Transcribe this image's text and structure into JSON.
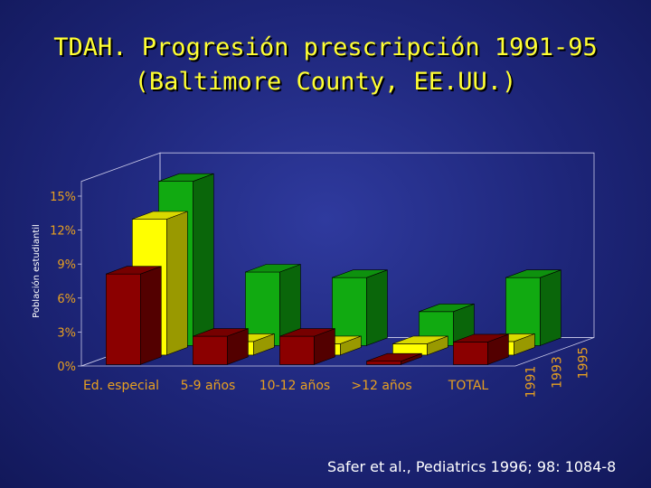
{
  "header": {
    "title_line1": "TDAH. Progresión prescripción 1991-95",
    "title_line2": "(Baltimore County, EE.UU.)"
  },
  "footer": {
    "source": "Safer et al., Pediatrics 1996; 98: 1084-8"
  },
  "chart_data": {
    "type": "bar",
    "style": "3d-clustered",
    "title": "TDAH. Progresión prescripción 1991-95 (Baltimore County, EE.UU.)",
    "ylabel": "Población estudiantil",
    "xlabel": "",
    "categories": [
      "Ed. especial",
      "5-9 años",
      "10-12 años",
      ">12 años",
      "TOTAL"
    ],
    "yticks": [
      "0%",
      "3%",
      "6%",
      "9%",
      "12%",
      "15%"
    ],
    "ylim": [
      0,
      15
    ],
    "grid": false,
    "series": [
      {
        "name": "1991",
        "values": [
          8,
          2.5,
          2.5,
          0.3,
          2
        ],
        "color": "#8b0000"
      },
      {
        "name": "1993",
        "values": [
          12,
          1.2,
          1,
          1,
          1.2
        ],
        "color": "#ffff00"
      },
      {
        "name": "1995",
        "values": [
          14.5,
          6.5,
          6,
          3,
          6
        ],
        "color": "#11aa11"
      }
    ]
  }
}
